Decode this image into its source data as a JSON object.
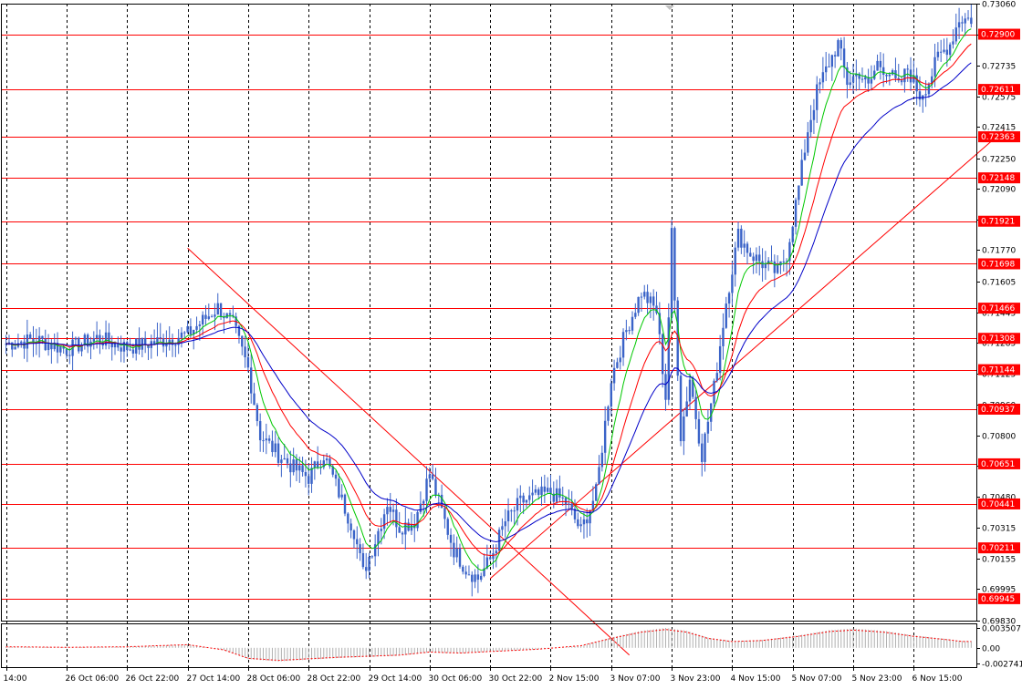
{
  "chart_data": {
    "type": "candlestick",
    "instrument": "",
    "timeframe": "",
    "colors": {
      "background": "#ffffff",
      "axis": "#000000",
      "grid": "#000000",
      "candle": "#3a63c8",
      "level_line": "#ff0000",
      "level_label_bg": "#ff0000",
      "ma_fast": "#00c800",
      "ma_medium": "#ff0000",
      "ma_slow": "#0000c8",
      "trendline": "#ff0000",
      "osc_line": "#ff0000",
      "osc_hist": "#b0b0b0"
    },
    "x_ticks": [
      "14:00",
      "26 Oct 06:00",
      "26 Oct 22:00",
      "27 Oct 14:00",
      "28 Oct 06:00",
      "28 Oct 22:00",
      "29 Oct 14:00",
      "30 Oct 06:00",
      "30 Oct 22:00",
      "2 Nov 15:00",
      "3 Nov 07:00",
      "3 Nov 23:00",
      "4 Nov 15:00",
      "5 Nov 07:00",
      "5 Nov 23:00",
      "6 Nov 15:00"
    ],
    "y_ticks": [
      "0.73060",
      "0.72900",
      "0.72735",
      "0.72575",
      "0.72415",
      "0.72250",
      "0.72090",
      "0.71930",
      "0.71770",
      "0.71605",
      "0.71445",
      "0.71285",
      "0.71125",
      "0.70960",
      "0.70800",
      "0.70640",
      "0.70480",
      "0.70315",
      "0.70155",
      "0.69995",
      "0.69830"
    ],
    "ylim": [
      0.6983,
      0.7306
    ],
    "levels": [
      "0.72900",
      "0.72611",
      "0.72363",
      "0.72148",
      "0.71921",
      "0.71698",
      "0.71466",
      "0.71308",
      "0.71144",
      "0.70937",
      "0.70651",
      "0.70441",
      "0.70211",
      "0.69945"
    ],
    "level_values": [
      0.729,
      0.72611,
      0.72363,
      0.72148,
      0.71921,
      0.71698,
      0.71466,
      0.71308,
      0.71144,
      0.70937,
      0.70651,
      0.70441,
      0.70211,
      0.69945
    ],
    "close_anchors": [
      [
        0,
        0.7128
      ],
      [
        10,
        0.713
      ],
      [
        20,
        0.7125
      ],
      [
        30,
        0.7131
      ],
      [
        40,
        0.7126
      ],
      [
        50,
        0.7129
      ],
      [
        60,
        0.7133
      ],
      [
        65,
        0.714
      ],
      [
        70,
        0.7147
      ],
      [
        75,
        0.7138
      ],
      [
        80,
        0.7115
      ],
      [
        84,
        0.708
      ],
      [
        90,
        0.707
      ],
      [
        95,
        0.7063
      ],
      [
        100,
        0.7058
      ],
      [
        105,
        0.707
      ],
      [
        110,
        0.705
      ],
      [
        115,
        0.703
      ],
      [
        118,
        0.7008
      ],
      [
        122,
        0.7025
      ],
      [
        126,
        0.7045
      ],
      [
        130,
        0.7032
      ],
      [
        135,
        0.7035
      ],
      [
        140,
        0.706
      ],
      [
        144,
        0.704
      ],
      [
        148,
        0.702
      ],
      [
        152,
        0.701
      ],
      [
        156,
        0.7005
      ],
      [
        160,
        0.7015
      ],
      [
        165,
        0.7035
      ],
      [
        170,
        0.7045
      ],
      [
        175,
        0.7048
      ],
      [
        180,
        0.705
      ],
      [
        185,
        0.7045
      ],
      [
        190,
        0.703
      ],
      [
        195,
        0.705
      ],
      [
        200,
        0.711
      ],
      [
        205,
        0.7135
      ],
      [
        210,
        0.7155
      ],
      [
        215,
        0.7145
      ],
      [
        218,
        0.71
      ],
      [
        220,
        0.7185
      ],
      [
        223,
        0.708
      ],
      [
        226,
        0.711
      ],
      [
        230,
        0.707
      ],
      [
        234,
        0.7105
      ],
      [
        238,
        0.715
      ],
      [
        242,
        0.7185
      ],
      [
        246,
        0.7175
      ],
      [
        250,
        0.717
      ],
      [
        255,
        0.7165
      ],
      [
        258,
        0.7175
      ],
      [
        262,
        0.721
      ],
      [
        265,
        0.724
      ],
      [
        268,
        0.726
      ],
      [
        272,
        0.7275
      ],
      [
        275,
        0.7285
      ],
      [
        278,
        0.7265
      ],
      [
        282,
        0.727
      ],
      [
        285,
        0.7262
      ],
      [
        288,
        0.7275
      ],
      [
        292,
        0.727
      ],
      [
        295,
        0.7262
      ],
      [
        298,
        0.7272
      ],
      [
        302,
        0.7258
      ],
      [
        305,
        0.7265
      ],
      [
        308,
        0.7278
      ],
      [
        312,
        0.7285
      ],
      [
        315,
        0.7298
      ]
    ],
    "trendlines": [
      {
        "from": [
          60,
          0.7178
        ],
        "to": [
          206,
          0.6965
        ]
      },
      {
        "from": [
          160,
          0.7005
        ],
        "to": [
          330,
          0.724
        ]
      }
    ],
    "oscillator": {
      "name": "",
      "y_ticks": [
        "0.003507",
        "0.00",
        "-0.002741"
      ],
      "ylim": [
        -0.0034,
        0.0043
      ],
      "anchors": [
        [
          0,
          0.0002
        ],
        [
          20,
          0.0001
        ],
        [
          40,
          0.0002
        ],
        [
          60,
          0.0006
        ],
        [
          72,
          -0.0004
        ],
        [
          80,
          -0.002
        ],
        [
          90,
          -0.0024
        ],
        [
          100,
          -0.0021
        ],
        [
          110,
          -0.0018
        ],
        [
          120,
          -0.0016
        ],
        [
          130,
          -0.0014
        ],
        [
          140,
          -0.0008
        ],
        [
          150,
          -0.001
        ],
        [
          160,
          -0.0007
        ],
        [
          175,
          -0.0003
        ],
        [
          190,
          0.0004
        ],
        [
          200,
          0.0018
        ],
        [
          210,
          0.003
        ],
        [
          218,
          0.0035
        ],
        [
          225,
          0.003
        ],
        [
          232,
          0.0018
        ],
        [
          240,
          0.0012
        ],
        [
          250,
          0.0014
        ],
        [
          262,
          0.0022
        ],
        [
          272,
          0.0031
        ],
        [
          280,
          0.0034
        ],
        [
          290,
          0.003
        ],
        [
          300,
          0.0022
        ],
        [
          312,
          0.0015
        ],
        [
          316,
          0.0012
        ]
      ]
    }
  }
}
